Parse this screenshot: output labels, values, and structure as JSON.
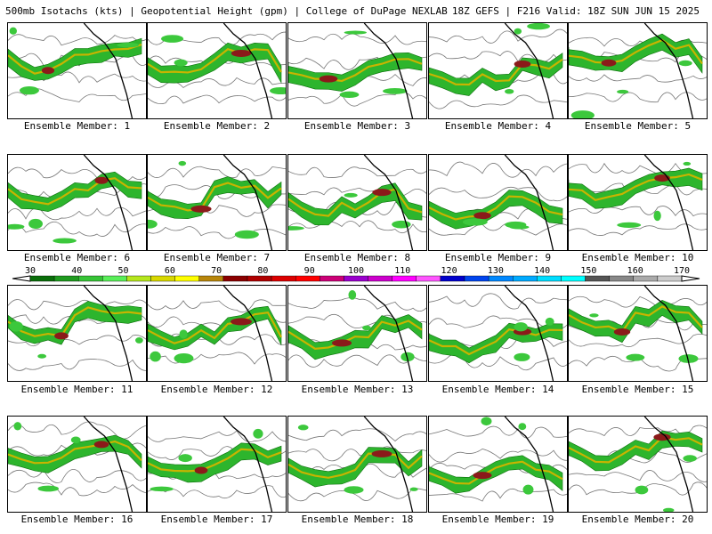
{
  "header": {
    "left": "500mb Isotachs (kts) | Geopotential Height (gpm) | College of DuPage NEXLAB",
    "right": "18Z GEFS | F216 Valid: 18Z SUN JUN 15 2025"
  },
  "colorbar": {
    "labels": [
      "30",
      "40",
      "50",
      "60",
      "70",
      "80",
      "90",
      "100",
      "110",
      "120",
      "130",
      "140",
      "150",
      "160",
      "170"
    ],
    "colors": [
      "#0a6e0a",
      "#1f9a1f",
      "#36c436",
      "#59ee59",
      "#b5e61d",
      "#d8d800",
      "#ffff00",
      "#b8860b",
      "#8b0000",
      "#b00000",
      "#dc0000",
      "#ff0000",
      "#cc0077",
      "#9900cc",
      "#cc00cc",
      "#ff00ff",
      "#ff55ff",
      "#0000cc",
      "#0044ee",
      "#0088ff",
      "#00aaff",
      "#00ddff",
      "#00ffff",
      "#555555",
      "#888888",
      "#aaaaaa",
      "#cccccc"
    ]
  },
  "members": [
    {
      "label": "Ensemble Member: 1"
    },
    {
      "label": "Ensemble Member: 2"
    },
    {
      "label": "Ensemble Member: 3"
    },
    {
      "label": "Ensemble Member: 4"
    },
    {
      "label": "Ensemble Member: 5"
    },
    {
      "label": "Ensemble Member: 6"
    },
    {
      "label": "Ensemble Member: 7"
    },
    {
      "label": "Ensemble Member: 8"
    },
    {
      "label": "Ensemble Member: 9"
    },
    {
      "label": "Ensemble Member: 10"
    },
    {
      "label": "Ensemble Member: 11"
    },
    {
      "label": "Ensemble Member: 12"
    },
    {
      "label": "Ensemble Member: 13"
    },
    {
      "label": "Ensemble Member: 14"
    },
    {
      "label": "Ensemble Member: 15"
    },
    {
      "label": "Ensemble Member: 16"
    },
    {
      "label": "Ensemble Member: 17"
    },
    {
      "label": "Ensemble Member: 18"
    },
    {
      "label": "Ensemble Member: 19"
    },
    {
      "label": "Ensemble Member: 20"
    }
  ]
}
